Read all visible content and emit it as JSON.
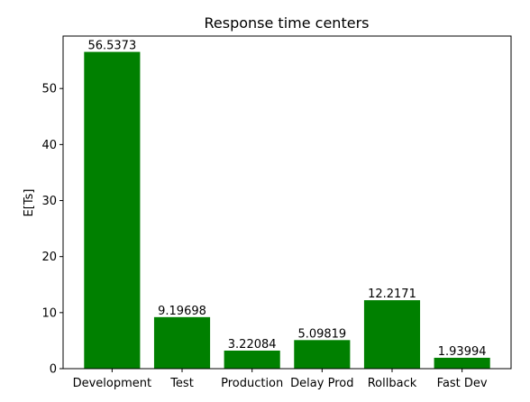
{
  "chart_data": {
    "type": "bar",
    "title": "Response time centers",
    "xlabel": "",
    "ylabel": "E[Ts]",
    "categories": [
      "Development",
      "Test",
      "Production",
      "Delay Prod",
      "Rollback",
      "Fast Dev"
    ],
    "values": [
      56.5373,
      9.19698,
      3.22084,
      5.09819,
      12.2171,
      1.93994
    ],
    "data_labels": [
      "56.5373",
      "9.19698",
      "3.22084",
      "5.09819",
      "12.2171",
      "1.93994"
    ],
    "ylim": [
      0,
      59.364
    ],
    "yticks": [
      0,
      10,
      20,
      30,
      40,
      50
    ],
    "ytick_labels": [
      "0",
      "10",
      "20",
      "30",
      "40",
      "50"
    ],
    "grid": false,
    "bar_color": "#008000"
  }
}
